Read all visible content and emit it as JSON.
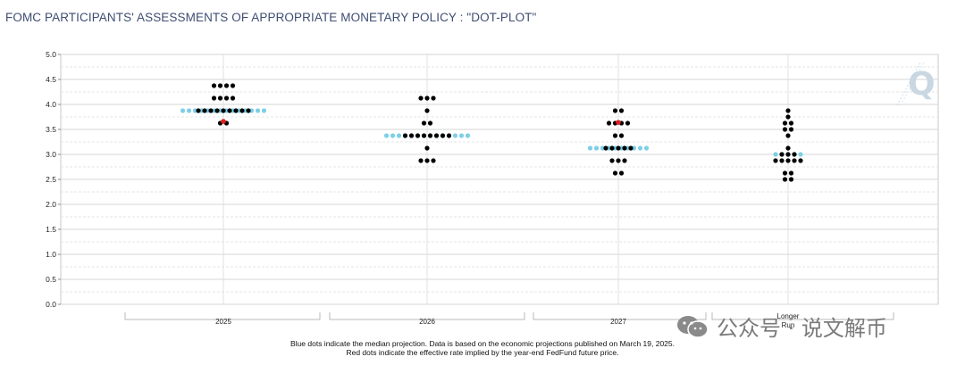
{
  "header": {
    "title": "FOMC PARTICIPANTS' ASSESSMENTS OF APPROPRIATE MONETARY POLICY : \"DOT-PLOT\""
  },
  "chart_data": {
    "type": "scatter",
    "title": "FOMC PARTICIPANTS' ASSESSMENTS OF APPROPRIATE MONETARY POLICY : \"DOT-PLOT\"",
    "xlabel": "",
    "ylabel": "",
    "ylim": [
      0.0,
      5.0
    ],
    "yticks": [
      "5.0",
      "4.5",
      "4.0",
      "3.5",
      "3.0",
      "2.5",
      "2.0",
      "1.5",
      "1.0",
      "0.5",
      "0.0"
    ],
    "categories": [
      "2025",
      "2026",
      "2027",
      "Longer Run"
    ],
    "grid": true,
    "participant_dots": [
      {
        "category": "2025",
        "rows": [
          {
            "y": 4.375,
            "count": 4
          },
          {
            "y": 4.125,
            "count": 4
          },
          {
            "y": 3.875,
            "count": 9
          },
          {
            "y": 3.625,
            "count": 2
          }
        ]
      },
      {
        "category": "2026",
        "rows": [
          {
            "y": 4.125,
            "count": 3
          },
          {
            "y": 3.875,
            "count": 1
          },
          {
            "y": 3.625,
            "count": 2
          },
          {
            "y": 3.375,
            "count": 8
          },
          {
            "y": 3.125,
            "count": 1
          },
          {
            "y": 2.875,
            "count": 3
          }
        ]
      },
      {
        "category": "2027",
        "rows": [
          {
            "y": 3.875,
            "count": 2
          },
          {
            "y": 3.625,
            "count": 4
          },
          {
            "y": 3.375,
            "count": 2
          },
          {
            "y": 3.125,
            "count": 5
          },
          {
            "y": 2.875,
            "count": 3
          },
          {
            "y": 2.625,
            "count": 2
          }
        ]
      },
      {
        "category": "Longer Run",
        "rows": [
          {
            "y": 3.875,
            "count": 1
          },
          {
            "y": 3.75,
            "count": 1
          },
          {
            "y": 3.625,
            "count": 2
          },
          {
            "y": 3.5,
            "count": 2
          },
          {
            "y": 3.375,
            "count": 1
          },
          {
            "y": 3.125,
            "count": 1
          },
          {
            "y": 3.0,
            "count": 3
          },
          {
            "y": 2.875,
            "count": 5
          },
          {
            "y": 2.625,
            "count": 2
          },
          {
            "y": 2.5,
            "count": 2
          }
        ]
      }
    ],
    "median_projection": [
      {
        "category": "2025",
        "y": 3.875
      },
      {
        "category": "2026",
        "y": 3.375
      },
      {
        "category": "2027",
        "y": 3.125
      },
      {
        "category": "Longer Run",
        "y": 3.0
      }
    ],
    "futures_implied": [
      {
        "category": "2025",
        "y": 3.66
      },
      {
        "category": "2027",
        "y": 3.64
      }
    ],
    "colors": {
      "participant": "#000000",
      "median": "#7ecfe6",
      "futures": "#e02020",
      "grid": "#cfcfcf",
      "axis": "#888888"
    }
  },
  "footnotes": {
    "line1": "Blue dots indicate the median projection. Data is based on the economic projections published on March 19, 2025.",
    "line2": "Red dots indicate the effective rate implied by the year-end FedFund future price."
  },
  "watermark": {
    "text": "公众号 · 说文解币",
    "icon": "wechat-icon"
  },
  "logo": {
    "letter": "Q"
  }
}
